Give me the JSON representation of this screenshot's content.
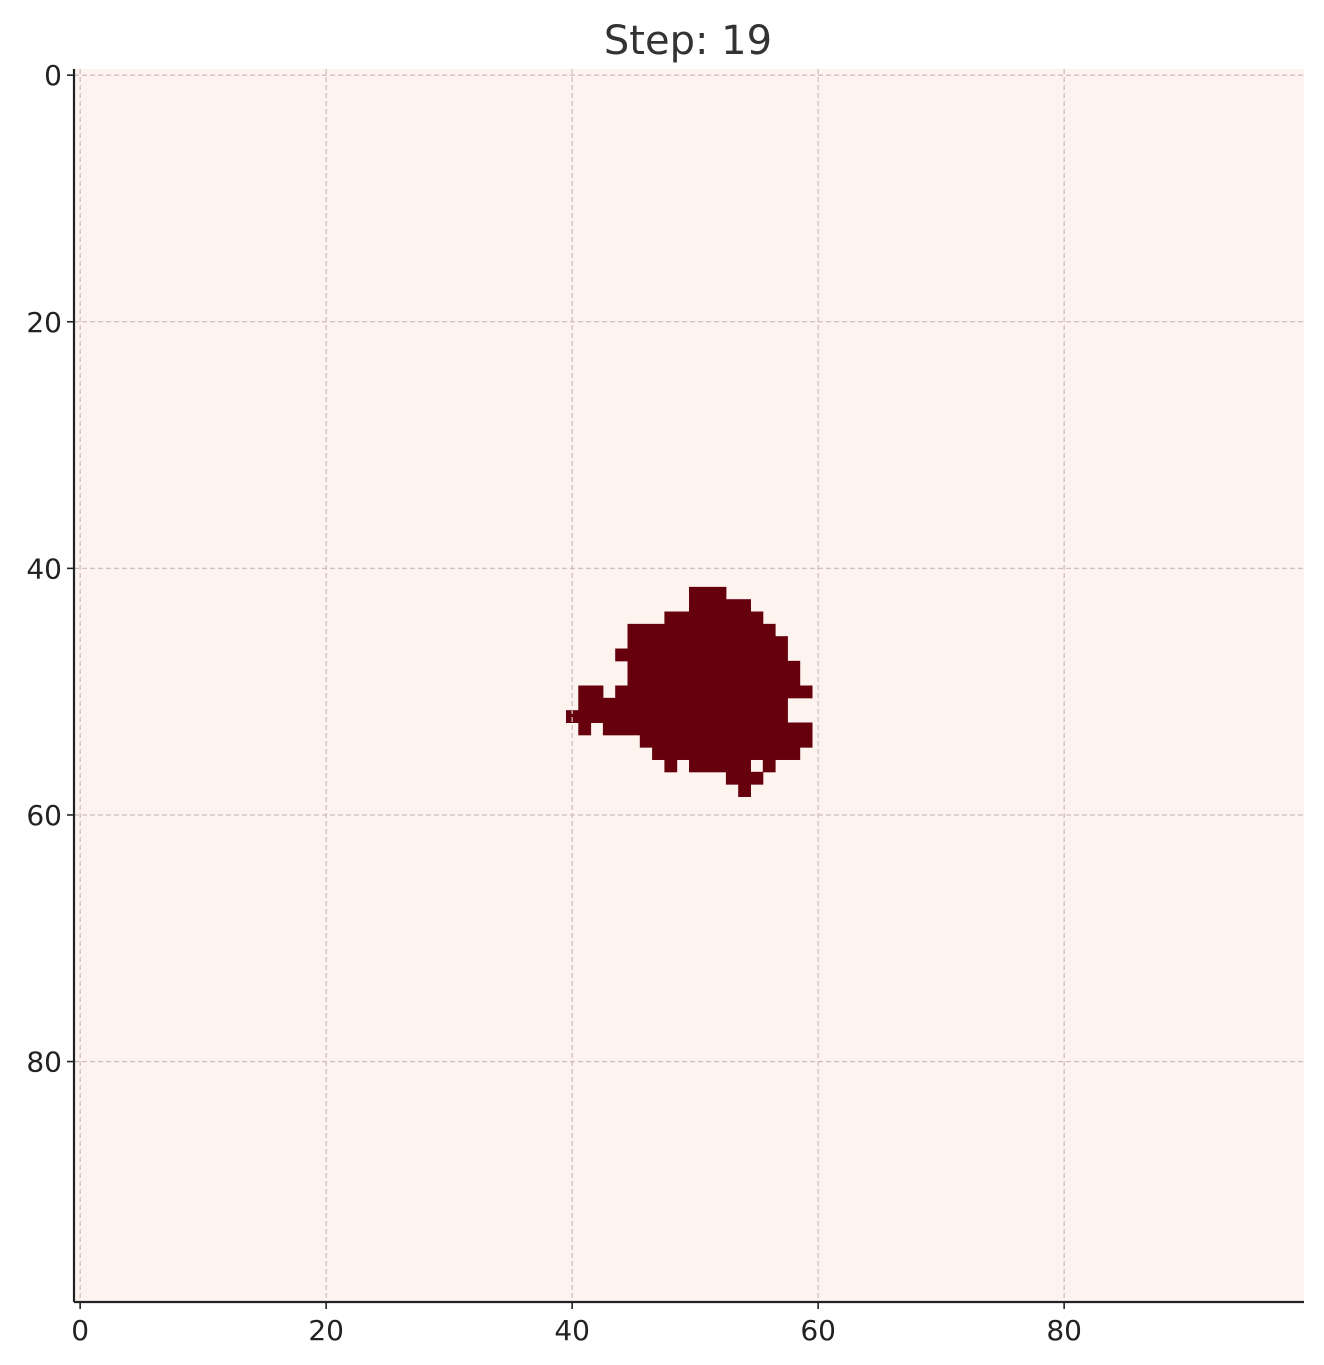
{
  "chart_data": {
    "type": "heatmap",
    "title": "Step: 19",
    "xlabel": "",
    "ylabel": "",
    "grid_size": [
      100,
      100
    ],
    "xlim": [
      -0.5,
      99.5
    ],
    "ylim": [
      99.5,
      -0.5
    ],
    "y_axis_inverted": true,
    "grid": true,
    "grid_style": "dashed",
    "xticks": [
      0,
      20,
      40,
      60,
      80
    ],
    "yticks": [
      0,
      20,
      40,
      60,
      80
    ],
    "colors": {
      "empty": "#fdf4f0",
      "occupied": "#67000d",
      "grid": "#d2bcbc",
      "axis": "#222222"
    },
    "occupied_runs": [
      {
        "row": 42,
        "from": 50,
        "to": 52
      },
      {
        "row": 43,
        "from": 50,
        "to": 52
      },
      {
        "row": 43,
        "from": 53,
        "to": 54
      },
      {
        "row": 44,
        "from": 48,
        "to": 55
      },
      {
        "row": 45,
        "from": 45,
        "to": 56
      },
      {
        "row": 46,
        "from": 45,
        "to": 57
      },
      {
        "row": 47,
        "from": 44,
        "to": 57
      },
      {
        "row": 48,
        "from": 45,
        "to": 58
      },
      {
        "row": 49,
        "from": 45,
        "to": 58
      },
      {
        "row": 50,
        "from": 41,
        "to": 42
      },
      {
        "row": 50,
        "from": 44,
        "to": 59
      },
      {
        "row": 51,
        "from": 41,
        "to": 57
      },
      {
        "row": 52,
        "from": 40,
        "to": 57
      },
      {
        "row": 53,
        "from": 41,
        "to": 41
      },
      {
        "row": 53,
        "from": 43,
        "to": 59
      },
      {
        "row": 54,
        "from": 46,
        "to": 59
      },
      {
        "row": 55,
        "from": 47,
        "to": 58
      },
      {
        "row": 56,
        "from": 48,
        "to": 48
      },
      {
        "row": 56,
        "from": 50,
        "to": 54
      },
      {
        "row": 56,
        "from": 56,
        "to": 56
      },
      {
        "row": 57,
        "from": 53,
        "to": 55
      },
      {
        "row": 58,
        "from": 54,
        "to": 54
      }
    ]
  }
}
